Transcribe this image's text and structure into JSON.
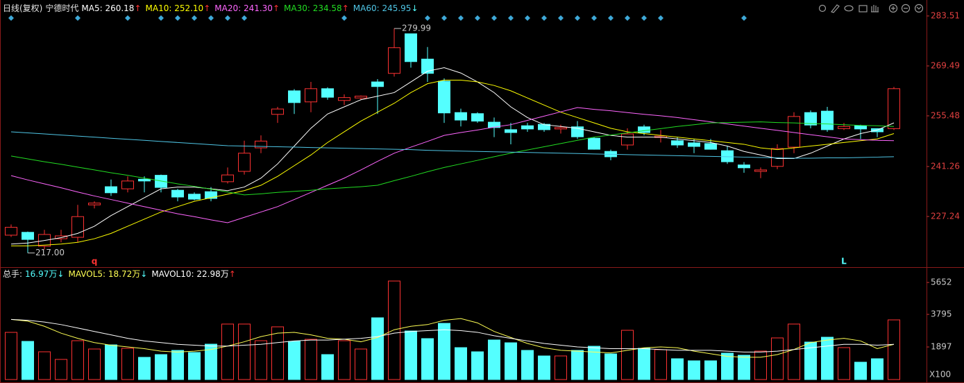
{
  "chart_data": [
    {
      "type": "candlestick",
      "period_label": "日线(复权)",
      "title": "宁德时代",
      "up_color": "#ff3232",
      "down_color": "#54ffff",
      "open": [
        222,
        222.8,
        218.9,
        221.0,
        221.4,
        230.5,
        235.6,
        235.0,
        237.7,
        238.8,
        234.6,
        233.5,
        234.2,
        237.0,
        239.9,
        246.5,
        255.9,
        262.5,
        259.4,
        263.1,
        259.8,
        260.5,
        265.0,
        267.4,
        278.5,
        271.4,
        265.2,
        256.4,
        256.1,
        253.7,
        251.6,
        252.7,
        253.1,
        251.8,
        252.4,
        249.2,
        245.5,
        247.3,
        252.4,
        249.4,
        248.5,
        247.9,
        247.7,
        245.7,
        241.7,
        239.9,
        241.3,
        246.7,
        256.4,
        256.8,
        251.9,
        252.7,
        251.9,
        251.9
      ],
      "high": [
        225,
        223,
        223.5,
        223.5,
        230.5,
        231.5,
        237.6,
        238.5,
        238.5,
        239,
        235,
        234,
        235.5,
        241,
        248.5,
        250,
        258,
        263,
        265,
        263.5,
        261.5,
        261.2,
        265.8,
        279.99,
        278.5,
        274.8,
        266,
        257.5,
        256.5,
        255,
        253.5,
        253.5,
        253.5,
        253,
        254,
        249.5,
        246,
        252,
        253,
        251.5,
        249.5,
        249,
        249,
        247,
        242.5,
        241,
        247.5,
        256.5,
        257,
        258,
        253.5,
        253,
        252,
        263.6
      ],
      "low": [
        221.5,
        217,
        218,
        220,
        220,
        229.5,
        233,
        234,
        234,
        234,
        231.5,
        231.8,
        231.5,
        236.5,
        239,
        245,
        253.5,
        256,
        256.5,
        260,
        258.5,
        260,
        256,
        266.5,
        269,
        265,
        253.5,
        252.5,
        253.5,
        249.5,
        247.5,
        251,
        251,
        250.5,
        249,
        246,
        243,
        246,
        250,
        248,
        246.5,
        245,
        246,
        242,
        239.5,
        238,
        240.5,
        245,
        252,
        251,
        251.5,
        249,
        249.5,
        251.5
      ],
      "close": [
        224.2,
        220.8,
        222.2,
        221.8,
        227.2,
        231.0,
        233.9,
        237.2,
        237.2,
        235.4,
        232.7,
        232.1,
        232.3,
        238.9,
        245.0,
        248.4,
        257.4,
        259.2,
        263.1,
        260.7,
        260.6,
        261.0,
        263.7,
        274.6,
        270.7,
        267.4,
        256.3,
        254.3,
        254.0,
        252.2,
        250.8,
        251.8,
        251.6,
        252.2,
        249.6,
        246.1,
        244.0,
        250.4,
        250.8,
        249.8,
        247.3,
        246.9,
        246.1,
        242.6,
        240.9,
        240.3,
        246.3,
        255.3,
        252.9,
        251.6,
        252.5,
        251.8,
        251.0,
        263.1
      ],
      "series": [
        {
          "name": "MA5: 260.18",
          "trend": "↑",
          "color": "#ffffff",
          "values": [
            219.5,
            219.8,
            220.5,
            221.3,
            222.5,
            224.5,
            227.5,
            230,
            232.5,
            235,
            235.5,
            235.5,
            235,
            234.5,
            235.5,
            238,
            242,
            247,
            252,
            256,
            258,
            260,
            261,
            262,
            265,
            268,
            269,
            267.5,
            265,
            262,
            258,
            255,
            253,
            252.5,
            252,
            251,
            250,
            249.5,
            249.5,
            249.5,
            249,
            248.5,
            248,
            247,
            245.5,
            244.5,
            243.5,
            243.5,
            245,
            247,
            249,
            250.5,
            251.5,
            253.5
          ]
        },
        {
          "name": "MA10: 252.10",
          "trend": "↑",
          "color": "#ffff00",
          "values": [
            219,
            219,
            219.2,
            219.5,
            220,
            221,
            222.5,
            224.5,
            226.5,
            228.5,
            230,
            231.5,
            232.5,
            233.5,
            234.5,
            236,
            238.5,
            241.5,
            244.5,
            248,
            251,
            254,
            256.5,
            259,
            262,
            264.5,
            265.5,
            265.5,
            265,
            264,
            262.5,
            260.5,
            258.5,
            256.5,
            255,
            253.5,
            252,
            251,
            250.5,
            250,
            249.5,
            249,
            248.5,
            248,
            247.5,
            246.5,
            246,
            246.5,
            247,
            247.5,
            248,
            248.5,
            249,
            250.5
          ]
        },
        {
          "name": "MA20: 241.30",
          "trend": "↑",
          "color": "#ff66ff",
          "values": [
            238.7,
            237.5,
            236.4,
            235.3,
            234.1,
            233,
            232,
            231,
            230,
            229,
            228,
            227.2,
            226.3,
            225.5,
            227,
            228.5,
            230,
            232,
            234,
            236,
            238,
            240.3,
            242.7,
            245,
            246.7,
            248.3,
            250,
            250.8,
            251.5,
            252.3,
            253,
            254.2,
            255.4,
            256.6,
            257.8,
            257.3,
            256.9,
            256.4,
            255.9,
            255.5,
            255,
            254.4,
            253.8,
            253.2,
            252.6,
            252,
            251.4,
            250.8,
            250.2,
            249.6,
            249,
            248.8,
            248.6,
            248.5
          ]
        },
        {
          "name": "MA30: 234.58",
          "trend": "↑",
          "color": "#22dd22",
          "values": [
            244.2,
            243.4,
            242.6,
            241.9,
            241.1,
            240.3,
            239.5,
            238.8,
            238,
            237.2,
            236.4,
            235.7,
            234.9,
            234.1,
            233.3,
            233.6,
            234,
            234.3,
            234.6,
            235,
            235.3,
            235.6,
            236,
            237.3,
            238.5,
            239.8,
            241,
            242,
            243,
            244,
            245,
            245.9,
            246.8,
            247.7,
            248.6,
            249.5,
            250.1,
            250.7,
            251.3,
            251.9,
            252.5,
            253,
            253.5,
            253.6,
            253.7,
            253.8,
            253.6,
            253.5,
            253.3,
            253.2,
            253,
            252.8,
            252.7,
            252.5
          ]
        },
        {
          "name": "MA60: 245.95",
          "trend": "↓",
          "color": "#4fc6e6",
          "values": [
            251,
            250.7,
            250.4,
            250.1,
            249.8,
            249.5,
            249.2,
            248.9,
            248.6,
            248.3,
            248,
            247.7,
            247.4,
            247.1,
            247,
            246.9,
            246.8,
            246.7,
            246.6,
            246.5,
            246.4,
            246.3,
            246.2,
            246.1,
            246,
            245.8,
            245.7,
            245.6,
            245.5,
            245.4,
            245.3,
            245.2,
            245.1,
            245,
            244.9,
            244.8,
            244.7,
            244.6,
            244.5,
            244.4,
            244.3,
            244.2,
            244.1,
            244,
            243.9,
            243.8,
            243.7,
            243.6,
            243.6,
            243.7,
            243.7,
            243.8,
            243.9,
            244
          ]
        }
      ],
      "ylim": [
        213.42,
        287.01
      ],
      "yticks": [
        283.51,
        269.49,
        255.48,
        241.26,
        227.24
      ],
      "annotations": [
        {
          "index": 23,
          "value": 279.99,
          "label": "279.99"
        },
        {
          "index": 1,
          "value": 217,
          "label": "217.00"
        }
      ],
      "signal_candles": [
        0,
        4,
        7,
        9,
        10,
        11,
        12,
        13,
        14,
        20,
        25,
        26,
        27,
        28,
        29,
        30,
        31,
        32,
        33,
        34,
        35,
        36,
        37,
        38,
        39,
        44
      ],
      "signal_color": "#3fa9d8",
      "markers": [
        {
          "index": 5,
          "text": "q",
          "color": "#ff3232"
        },
        {
          "index": 50,
          "text": "L",
          "color": "#54ffff"
        }
      ]
    },
    {
      "type": "bar",
      "title": "总手:",
      "current": {
        "label": "16.97万",
        "trend": "↓"
      },
      "values": [
        2747,
        2222,
        1616,
        1172,
        2262,
        1778,
        2020,
        1818,
        1293,
        1454,
        1697,
        1576,
        2060,
        3232,
        3232,
        2262,
        3070,
        2222,
        2343,
        1454,
        2262,
        1778,
        3596,
        5737,
        2828,
        2384,
        3272,
        1858,
        1616,
        2303,
        2141,
        1697,
        1374,
        1374,
        1697,
        1939,
        1495,
        2868,
        1818,
        1737,
        1212,
        1091,
        1091,
        1535,
        1414,
        1656,
        2424,
        3232,
        2182,
        2464,
        1858,
        1010,
        1212,
        3474
      ],
      "series": [
        {
          "name": "MAVOL5: 18.72万",
          "trend": "↓",
          "color": "#ffff54",
          "values": [
            3500,
            3400,
            3100,
            2700,
            2400,
            2150,
            2000,
            1900,
            1800,
            1650,
            1600,
            1650,
            1750,
            1950,
            2200,
            2500,
            2700,
            2750,
            2600,
            2400,
            2350,
            2200,
            2450,
            2900,
            3100,
            3200,
            3450,
            3550,
            3300,
            2800,
            2450,
            2100,
            1850,
            1700,
            1650,
            1600,
            1550,
            1700,
            1850,
            1900,
            1850,
            1650,
            1500,
            1350,
            1300,
            1300,
            1450,
            1750,
            2150,
            2300,
            2400,
            2250,
            1800,
            2050
          ]
        },
        {
          "name": "MAVOL10: 22.98万",
          "trend": "↑",
          "color": "#ffffff",
          "values": [
            3500,
            3450,
            3350,
            3200,
            3000,
            2800,
            2600,
            2400,
            2250,
            2150,
            2050,
            2000,
            1950,
            1950,
            2000,
            2050,
            2150,
            2250,
            2300,
            2300,
            2350,
            2400,
            2500,
            2700,
            2800,
            2850,
            2900,
            2850,
            2750,
            2550,
            2400,
            2250,
            2100,
            2000,
            1900,
            1850,
            1800,
            1800,
            1800,
            1750,
            1700,
            1700,
            1700,
            1650,
            1600,
            1600,
            1650,
            1750,
            1850,
            1950,
            2050,
            2050,
            2000,
            2050
          ]
        }
      ],
      "ylim": [
        0,
        5940
      ],
      "yticks": [
        5652,
        3795,
        1897
      ],
      "y_unit": "X100"
    }
  ]
}
